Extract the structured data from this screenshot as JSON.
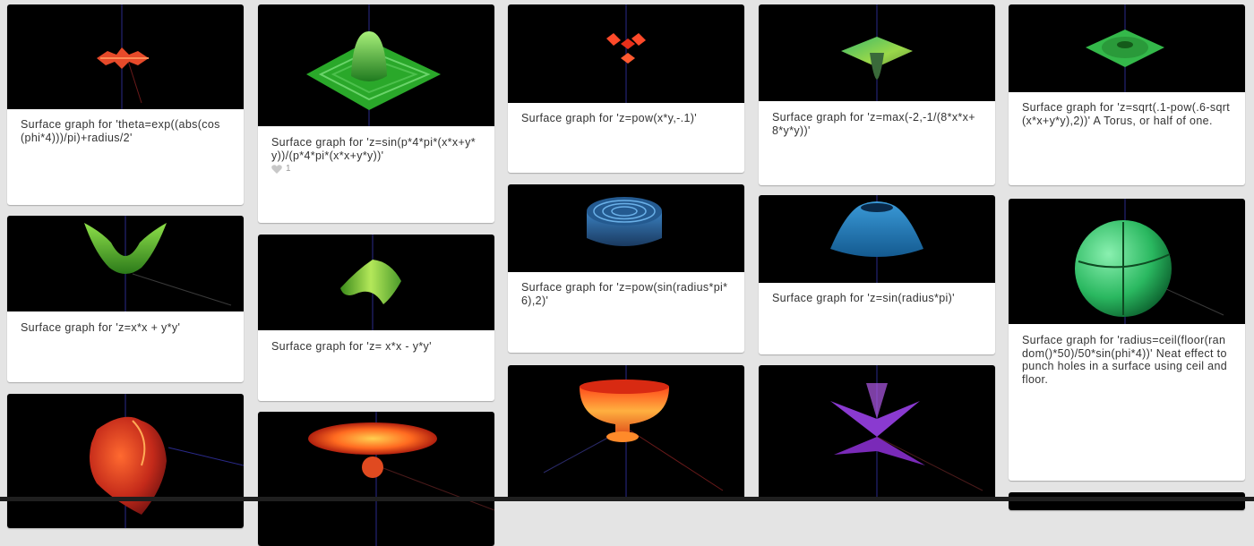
{
  "cards": [
    {
      "caption": "Surface graph for 'theta=exp((abs(cos(phi*4)))/pi)+radius/2'"
    },
    {
      "caption": "Surface graph for 'z=sin(p*4*pi*(x*x+y*y))/(p*4*pi*(x*x+y*y))'",
      "likes": "1"
    },
    {
      "caption": "Surface graph for 'z=pow(x*y,-.1)'"
    },
    {
      "caption": "Surface graph for 'z=max(-2,-1/(8*x*x+8*y*y))'"
    },
    {
      "caption": "Surface graph for 'z=sqrt(.1-pow(.6-sqrt(x*x+y*y),2))' A Torus, or half of one."
    },
    {
      "caption": "Surface graph for 'z=x*x + y*y'"
    },
    {
      "caption": "Surface graph for 'z= x*x - y*y'"
    },
    {
      "caption": "Surface graph for 'z=pow(sin(radius*pi*6),2)'"
    },
    {
      "caption": "Surface graph for 'z=sin(radius*pi)'"
    },
    {
      "caption": "Surface graph for 'radius=ceil(floor(random()*50)/50*sin(phi*4))' Neat effect to punch holes in a surface using ceil and floor."
    },
    {
      "caption": ""
    },
    {
      "caption": ""
    },
    {
      "caption": ""
    },
    {
      "caption": ""
    }
  ]
}
